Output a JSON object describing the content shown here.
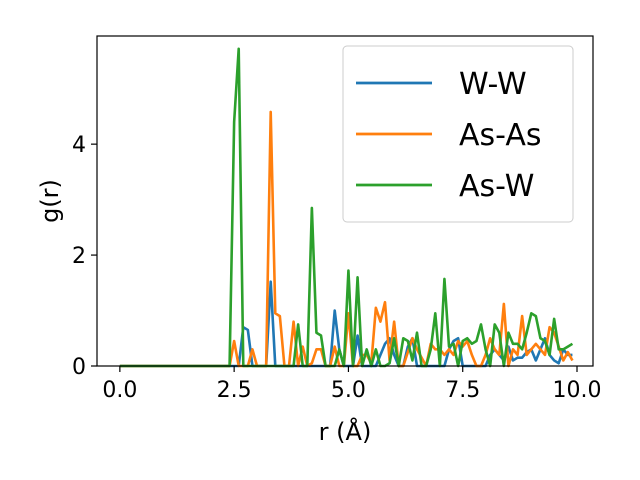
{
  "chart_data": {
    "type": "line",
    "xlabel": "r (Å)",
    "ylabel": "g(r)",
    "xlim": [
      -0.5,
      10.35
    ],
    "ylim": [
      0,
      5.95
    ],
    "xticks": [
      0.0,
      2.5,
      5.0,
      7.5,
      10.0
    ],
    "xtick_labels": [
      "0.0",
      "2.5",
      "5.0",
      "7.5",
      "10.0"
    ],
    "yticks": [
      0,
      2,
      4
    ],
    "ytick_labels": [
      "0",
      "2",
      "4"
    ],
    "grid": false,
    "legend_position": "top-right",
    "x": [
      0.0,
      0.1,
      0.2,
      0.3,
      0.4,
      0.5,
      0.6,
      0.7,
      0.8,
      0.9,
      1.0,
      1.1,
      1.2,
      1.3,
      1.4,
      1.5,
      1.6,
      1.7,
      1.8,
      1.9,
      2.0,
      2.1,
      2.2,
      2.3,
      2.4,
      2.5,
      2.6,
      2.7,
      2.8,
      2.9,
      3.0,
      3.1,
      3.2,
      3.3,
      3.4,
      3.5,
      3.6,
      3.7,
      3.8,
      3.9,
      4.0,
      4.1,
      4.2,
      4.3,
      4.4,
      4.5,
      4.6,
      4.7,
      4.8,
      4.9,
      5.0,
      5.1,
      5.2,
      5.3,
      5.4,
      5.5,
      5.6,
      5.7,
      5.8,
      5.9,
      6.0,
      6.1,
      6.2,
      6.3,
      6.4,
      6.5,
      6.6,
      6.7,
      6.8,
      6.9,
      7.0,
      7.1,
      7.2,
      7.3,
      7.4,
      7.5,
      7.6,
      7.7,
      7.8,
      7.9,
      8.0,
      8.1,
      8.2,
      8.3,
      8.4,
      8.5,
      8.6,
      8.7,
      8.8,
      8.9,
      9.0,
      9.1,
      9.2,
      9.3,
      9.4,
      9.5,
      9.6,
      9.7,
      9.8,
      9.9
    ],
    "series": [
      {
        "name": "W-W",
        "color": "#1f77b4",
        "values": [
          0,
          0,
          0,
          0,
          0,
          0,
          0,
          0,
          0,
          0,
          0,
          0,
          0,
          0,
          0,
          0,
          0,
          0,
          0,
          0,
          0,
          0,
          0,
          0,
          0,
          0,
          0,
          0.7,
          0.65,
          0,
          0,
          0,
          0,
          1.52,
          0,
          0,
          0,
          0,
          0,
          0,
          0,
          0,
          0,
          0,
          0,
          0,
          0,
          1.0,
          0.3,
          0,
          0,
          0,
          0.55,
          0,
          0,
          0,
          0,
          0.2,
          0.4,
          0.5,
          0.2,
          0,
          0,
          0.35,
          0.5,
          0,
          0,
          0,
          0,
          0,
          0,
          0,
          0.3,
          0.45,
          0.5,
          0,
          0,
          0,
          0,
          0,
          0,
          0.2,
          0.3,
          0.2,
          0.1,
          0.35,
          0.1,
          0.15,
          0.15,
          0.25,
          0.3,
          0.1,
          0.3,
          0.5,
          0.2,
          0.1,
          0.05,
          0.3,
          0.2,
          0.2
        ]
      },
      {
        "name": "As-As",
        "color": "#ff7f0e",
        "values": [
          0,
          0,
          0,
          0,
          0,
          0,
          0,
          0,
          0,
          0,
          0,
          0,
          0,
          0,
          0,
          0,
          0,
          0,
          0,
          0,
          0,
          0,
          0,
          0,
          0,
          0.45,
          0,
          0,
          0,
          0.3,
          0,
          0,
          0,
          4.58,
          0.95,
          0.9,
          0,
          0,
          0.8,
          0,
          0.35,
          0,
          0.05,
          0.3,
          0.3,
          0,
          0,
          0.35,
          0,
          0,
          0.95,
          0,
          0,
          0.2,
          0.2,
          0.05,
          1.05,
          0.8,
          1.15,
          0.1,
          0.8,
          0,
          0,
          0.25,
          0.5,
          0.3,
          0.15,
          0,
          0.4,
          0.3,
          0.3,
          0.2,
          0.3,
          0.2,
          0.45,
          0.35,
          0.45,
          0.2,
          0,
          0,
          0.2,
          0.5,
          0.3,
          0.2,
          1.12,
          0,
          0.3,
          0.2,
          0.9,
          0.2,
          0.3,
          0.4,
          0.3,
          0.2,
          0.7,
          0.6,
          0.35,
          0.1,
          0.25,
          0.1
        ]
      },
      {
        "name": "As-W",
        "color": "#2ca02c",
        "values": [
          0,
          0,
          0,
          0,
          0,
          0,
          0,
          0,
          0,
          0,
          0,
          0,
          0,
          0,
          0,
          0,
          0,
          0,
          0,
          0,
          0,
          0,
          0,
          0,
          0,
          4.4,
          5.72,
          0,
          0,
          0,
          0,
          0,
          0,
          0,
          0,
          0,
          0,
          0,
          0,
          0.75,
          0,
          0,
          2.85,
          0.6,
          0.55,
          0,
          0,
          0,
          0.3,
          0,
          1.72,
          0,
          1.6,
          0,
          0.3,
          0,
          0.3,
          0,
          0,
          0.05,
          0.5,
          0,
          0.5,
          0.45,
          0.1,
          0.6,
          0,
          0,
          0.3,
          0.95,
          0,
          1.57,
          0.35,
          0.4,
          0,
          0.45,
          0.5,
          0.4,
          0.45,
          0.75,
          0.3,
          0,
          0.75,
          0.6,
          0,
          0.6,
          0.4,
          0.4,
          0.3,
          0.6,
          0.95,
          0.9,
          0.5,
          0.45,
          0.2,
          0.85,
          0.3,
          0.3,
          0.35,
          0.4
        ]
      }
    ]
  }
}
